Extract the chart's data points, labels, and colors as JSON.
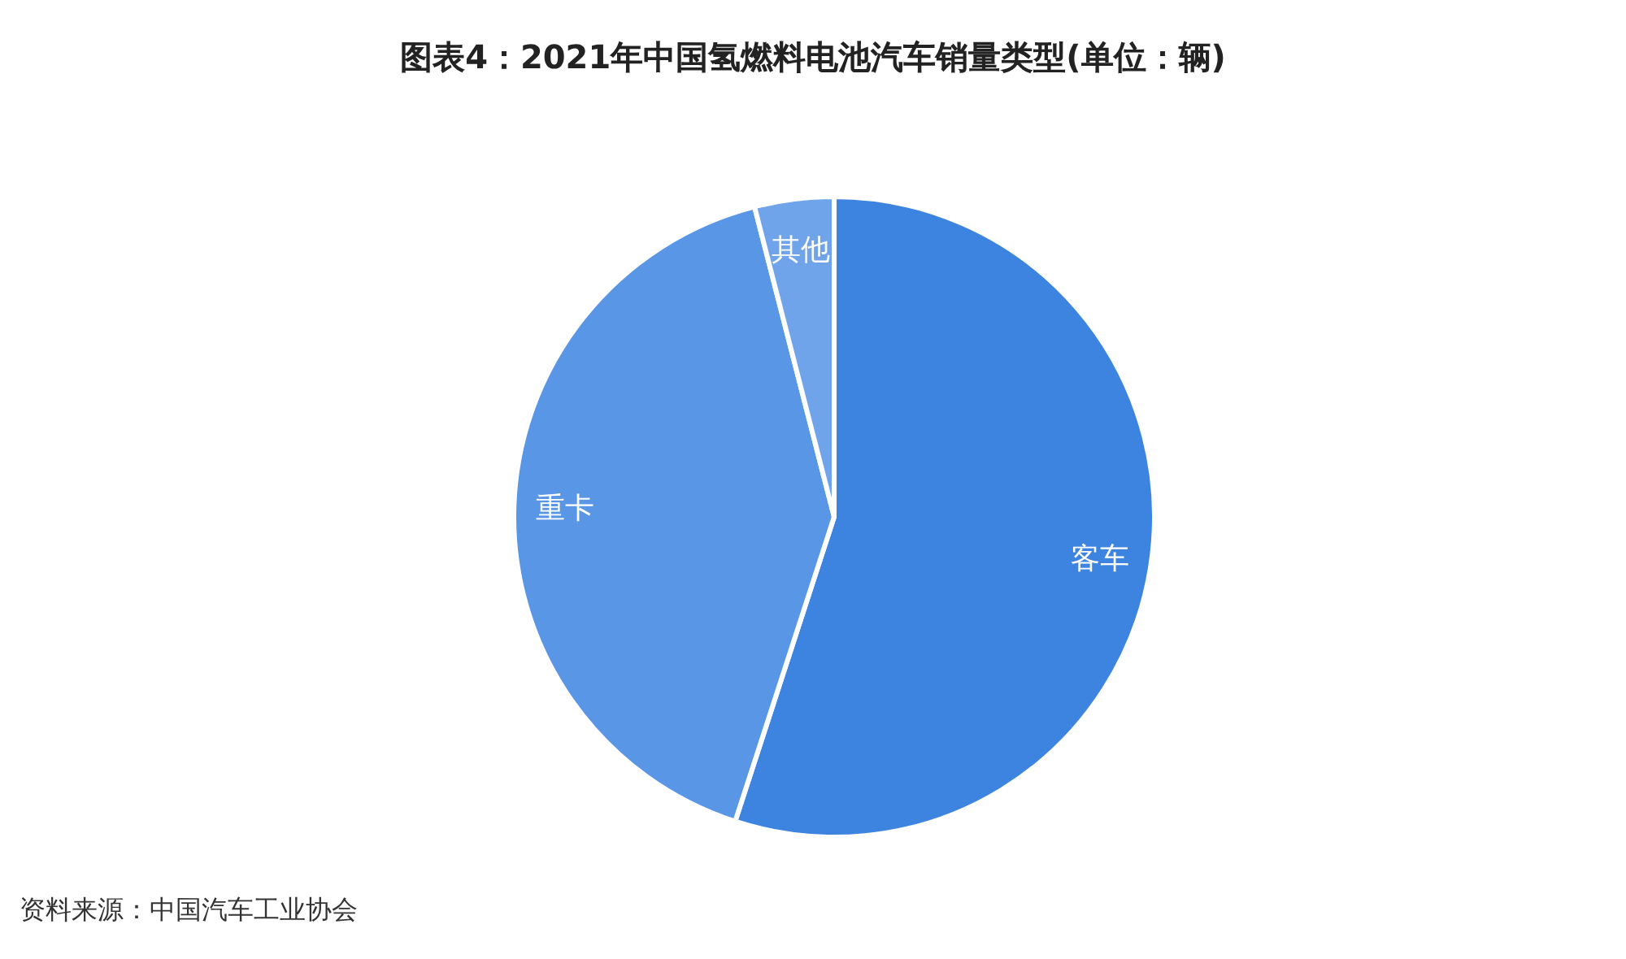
{
  "chart_data": {
    "type": "pie",
    "title": "图表4：2021年中国氢燃料电池汽车销量类型(单位：辆)",
    "categories": [
      "客车",
      "重卡",
      "其他"
    ],
    "values": [
      55,
      41,
      4
    ],
    "colors": [
      "#3c84e0",
      "#5a96e6",
      "#6fa4ea"
    ],
    "annotations": [
      "资料来源：中国汽车工业协会"
    ]
  }
}
